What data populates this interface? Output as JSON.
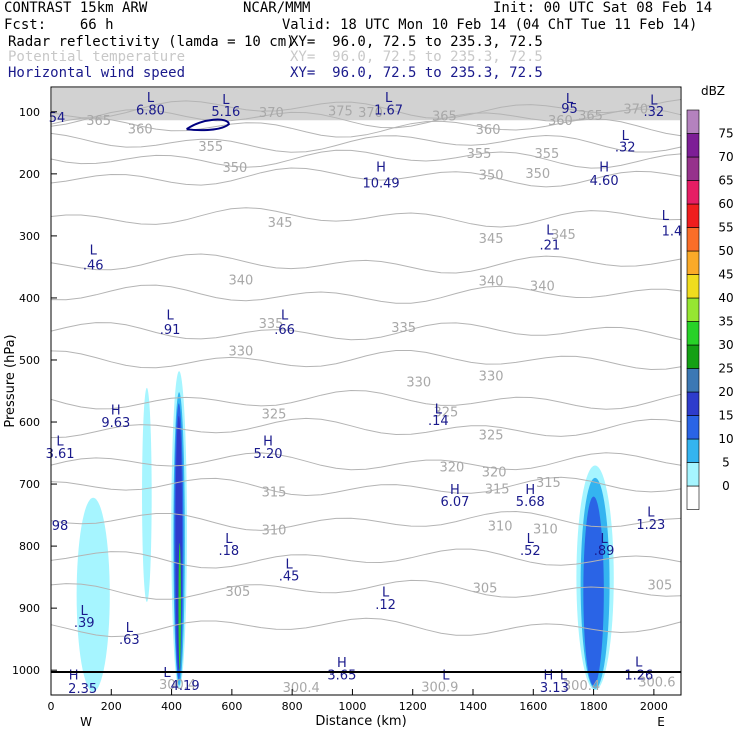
{
  "header": {
    "model": "CONTRAST 15km ARW",
    "org": "NCAR/MMM",
    "init": "Init: 00 UTC Sat 08 Feb 14",
    "fcst": "Fcst:    66 h",
    "valid": "Valid: 18 UTC Mon 10 Feb 14 (04 ChT Tue 11 Feb 14)",
    "fields": [
      {
        "name": "Radar reflectivity (lamda = 10 cm)",
        "xy": "XY=  96.0, 72.5 to 235.3, 72.5",
        "color": "#000000"
      },
      {
        "name": "Potential temperature",
        "xy": "XY=  96.0, 72.5 to 235.3, 72.5",
        "color": "#c8c8c8"
      },
      {
        "name": "Horizontal wind speed",
        "xy": "XY=  96.0, 72.5 to 235.3, 72.5",
        "color": "#1a1a8c"
      }
    ]
  },
  "chart_data": {
    "type": "contour cross-section",
    "xlabel": "Distance (km)",
    "ylabel": "Pressure (hPa)",
    "xlim": [
      0,
      2090
    ],
    "ylim": [
      1040,
      60
    ],
    "x_ticks": [
      0,
      200,
      400,
      600,
      800,
      1000,
      1200,
      1400,
      1600,
      1800,
      2000
    ],
    "y_ticks": [
      100,
      200,
      300,
      400,
      500,
      600,
      700,
      800,
      900,
      1000
    ],
    "end_labels": {
      "left": "W",
      "right": "E"
    },
    "colorbar": {
      "unit": "dBZ",
      "levels": [
        0,
        5,
        10,
        15,
        20,
        25,
        30,
        35,
        40,
        45,
        50,
        55,
        60,
        65,
        70,
        75
      ],
      "colors": [
        "#ffffff",
        "#a6f5ff",
        "#34b4f0",
        "#2a64e6",
        "#2e3ccc",
        "#3c78b4",
        "#14a014",
        "#28d228",
        "#96e632",
        "#f0dc1e",
        "#faaa28",
        "#fa6e28",
        "#f01e1e",
        "#e61e64",
        "#96328c",
        "#7d1e96",
        "#b482be"
      ]
    },
    "theta_labels": [
      {
        "v": "365",
        "x": 158,
        "p": 113
      },
      {
        "v": "360",
        "x": 296,
        "p": 127
      },
      {
        "v": "370",
        "x": 731,
        "p": 100
      },
      {
        "v": "375",
        "x": 960,
        "p": 98
      },
      {
        "v": "370",
        "x": 1060,
        "p": 100
      },
      {
        "v": "365",
        "x": 1305,
        "p": 106
      },
      {
        "v": "360",
        "x": 1450,
        "p": 128
      },
      {
        "v": "360",
        "x": 1690,
        "p": 113
      },
      {
        "v": "365",
        "x": 1790,
        "p": 105
      },
      {
        "v": "370",
        "x": 1940,
        "p": 95
      },
      {
        "v": "355",
        "x": 530,
        "p": 155
      },
      {
        "v": "355",
        "x": 1420,
        "p": 166
      },
      {
        "v": "355",
        "x": 1645,
        "p": 166
      },
      {
        "v": "350",
        "x": 610,
        "p": 189
      },
      {
        "v": "350",
        "x": 1460,
        "p": 201
      },
      {
        "v": "350",
        "x": 1615,
        "p": 199
      },
      {
        "v": "345",
        "x": 760,
        "p": 278
      },
      {
        "v": "345",
        "x": 1460,
        "p": 303
      },
      {
        "v": "345",
        "x": 1700,
        "p": 297
      },
      {
        "v": "340",
        "x": 630,
        "p": 370
      },
      {
        "v": "340",
        "x": 1460,
        "p": 372
      },
      {
        "v": "340",
        "x": 1630,
        "p": 380
      },
      {
        "v": "335",
        "x": 730,
        "p": 440
      },
      {
        "v": "335",
        "x": 1170,
        "p": 447
      },
      {
        "v": "330",
        "x": 630,
        "p": 485
      },
      {
        "v": "330",
        "x": 1220,
        "p": 535
      },
      {
        "v": "330",
        "x": 1460,
        "p": 525
      },
      {
        "v": "325",
        "x": 740,
        "p": 586
      },
      {
        "v": "325",
        "x": 1310,
        "p": 583
      },
      {
        "v": "325",
        "x": 1460,
        "p": 620
      },
      {
        "v": "320",
        "x": 1330,
        "p": 672
      },
      {
        "v": "320",
        "x": 1470,
        "p": 680
      },
      {
        "v": "315",
        "x": 740,
        "p": 712
      },
      {
        "v": "315",
        "x": 1480,
        "p": 707
      },
      {
        "v": "315",
        "x": 1650,
        "p": 697
      },
      {
        "v": "310",
        "x": 740,
        "p": 773
      },
      {
        "v": "310",
        "x": 1490,
        "p": 767
      },
      {
        "v": "310",
        "x": 1640,
        "p": 772
      },
      {
        "v": "305",
        "x": 620,
        "p": 872
      },
      {
        "v": "305",
        "x": 1440,
        "p": 867
      },
      {
        "v": "305",
        "x": 2020,
        "p": 862
      },
      {
        "v": "300.4",
        "x": 420,
        "p": 1022
      },
      {
        "v": "300.4",
        "x": 830,
        "p": 1027
      },
      {
        "v": "300.9",
        "x": 1290,
        "p": 1026
      },
      {
        "v": "300.4",
        "x": 1760,
        "p": 1024
      },
      {
        "v": "300.6",
        "x": 2010,
        "p": 1018
      }
    ],
    "theta_lines_p": [
      95,
      110,
      125,
      150,
      175,
      205,
      270,
      345,
      395,
      455,
      500,
      565,
      610,
      665,
      705,
      760,
      820,
      870,
      930
    ],
    "wind_labels": [
      {
        "t": "L",
        "x": 330,
        "p": 76
      },
      {
        "t": "6.80",
        "x": 330,
        "p": 96
      },
      {
        "t": "L",
        "x": 580,
        "p": 79
      },
      {
        "t": "5.16",
        "x": 580,
        "p": 99
      },
      {
        "t": "L",
        "x": 1120,
        "p": 76
      },
      {
        "t": "1.67",
        "x": 1120,
        "p": 96
      },
      {
        "t": "L",
        "x": 1720,
        "p": 78
      },
      {
        "t": "95",
        "x": 1720,
        "p": 94
      },
      {
        "t": "L",
        "x": 2000,
        "p": 80
      },
      {
        "t": ".32",
        "x": 2000,
        "p": 99
      },
      {
        "t": "54",
        "x": 20,
        "p": 108
      },
      {
        "t": "L",
        "x": 1905,
        "p": 137
      },
      {
        "t": ".32",
        "x": 1905,
        "p": 156
      },
      {
        "t": "H",
        "x": 1095,
        "p": 188
      },
      {
        "t": "10.49",
        "x": 1095,
        "p": 214
      },
      {
        "t": "H",
        "x": 1835,
        "p": 188
      },
      {
        "t": "4.60",
        "x": 1835,
        "p": 210
      },
      {
        "t": "L",
        "x": 2038,
        "p": 266
      },
      {
        "t": "1.4",
        "x": 2060,
        "p": 291
      },
      {
        "t": "L",
        "x": 1655,
        "p": 290
      },
      {
        "t": ".21",
        "x": 1655,
        "p": 314
      },
      {
        "t": "L",
        "x": 140,
        "p": 322
      },
      {
        "t": ".46",
        "x": 140,
        "p": 346
      },
      {
        "t": "L",
        "x": 395,
        "p": 427
      },
      {
        "t": ".91",
        "x": 395,
        "p": 450
      },
      {
        "t": "L",
        "x": 775,
        "p": 427
      },
      {
        "t": ".66",
        "x": 775,
        "p": 450
      },
      {
        "t": "H",
        "x": 215,
        "p": 580
      },
      {
        "t": "9.63",
        "x": 215,
        "p": 600
      },
      {
        "t": "L",
        "x": 1285,
        "p": 578
      },
      {
        "t": ".14",
        "x": 1285,
        "p": 597
      },
      {
        "t": "L",
        "x": 30,
        "p": 630
      },
      {
        "t": "3.61",
        "x": 30,
        "p": 650
      },
      {
        "t": "H",
        "x": 720,
        "p": 630
      },
      {
        "t": "5.20",
        "x": 720,
        "p": 650
      },
      {
        "t": "H",
        "x": 1340,
        "p": 708
      },
      {
        "t": "6.07",
        "x": 1340,
        "p": 727
      },
      {
        "t": "H",
        "x": 1590,
        "p": 708
      },
      {
        "t": "5.68",
        "x": 1590,
        "p": 727
      },
      {
        "t": "L",
        "x": 1990,
        "p": 744
      },
      {
        "t": "1.23",
        "x": 1990,
        "p": 764
      },
      {
        "t": "98",
        "x": 30,
        "p": 766
      },
      {
        "t": "L",
        "x": 590,
        "p": 787
      },
      {
        "t": ".18",
        "x": 590,
        "p": 806
      },
      {
        "t": "L",
        "x": 1590,
        "p": 787
      },
      {
        "t": ".52",
        "x": 1590,
        "p": 806
      },
      {
        "t": "L",
        "x": 1835,
        "p": 787
      },
      {
        "t": ".89",
        "x": 1835,
        "p": 806
      },
      {
        "t": "L",
        "x": 790,
        "p": 828
      },
      {
        "t": ".45",
        "x": 790,
        "p": 847
      },
      {
        "t": "L",
        "x": 1110,
        "p": 873
      },
      {
        "t": ".12",
        "x": 1110,
        "p": 893
      },
      {
        "t": "L",
        "x": 110,
        "p": 903
      },
      {
        "t": ".39",
        "x": 110,
        "p": 922
      },
      {
        "t": "L",
        "x": 260,
        "p": 930
      },
      {
        "t": ".63",
        "x": 260,
        "p": 950
      },
      {
        "t": "L",
        "x": 1950,
        "p": 986
      },
      {
        "t": "1.26",
        "x": 1950,
        "p": 1007
      },
      {
        "t": "H",
        "x": 965,
        "p": 987
      },
      {
        "t": "3.65",
        "x": 965,
        "p": 1007
      },
      {
        "t": "H",
        "x": 75,
        "p": 1007
      },
      {
        "t": "2.35",
        "x": 105,
        "p": 1029
      },
      {
        "t": "L",
        "x": 385,
        "p": 1003
      },
      {
        "t": "4.19",
        "x": 445,
        "p": 1024
      },
      {
        "t": "H",
        "x": 1650,
        "p": 1007
      },
      {
        "t": "3.13",
        "x": 1670,
        "p": 1027
      },
      {
        "t": "L",
        "x": 1310,
        "p": 1007
      },
      {
        "t": "L",
        "x": 1700,
        "p": 1007
      }
    ],
    "surface_p": 1003
  }
}
